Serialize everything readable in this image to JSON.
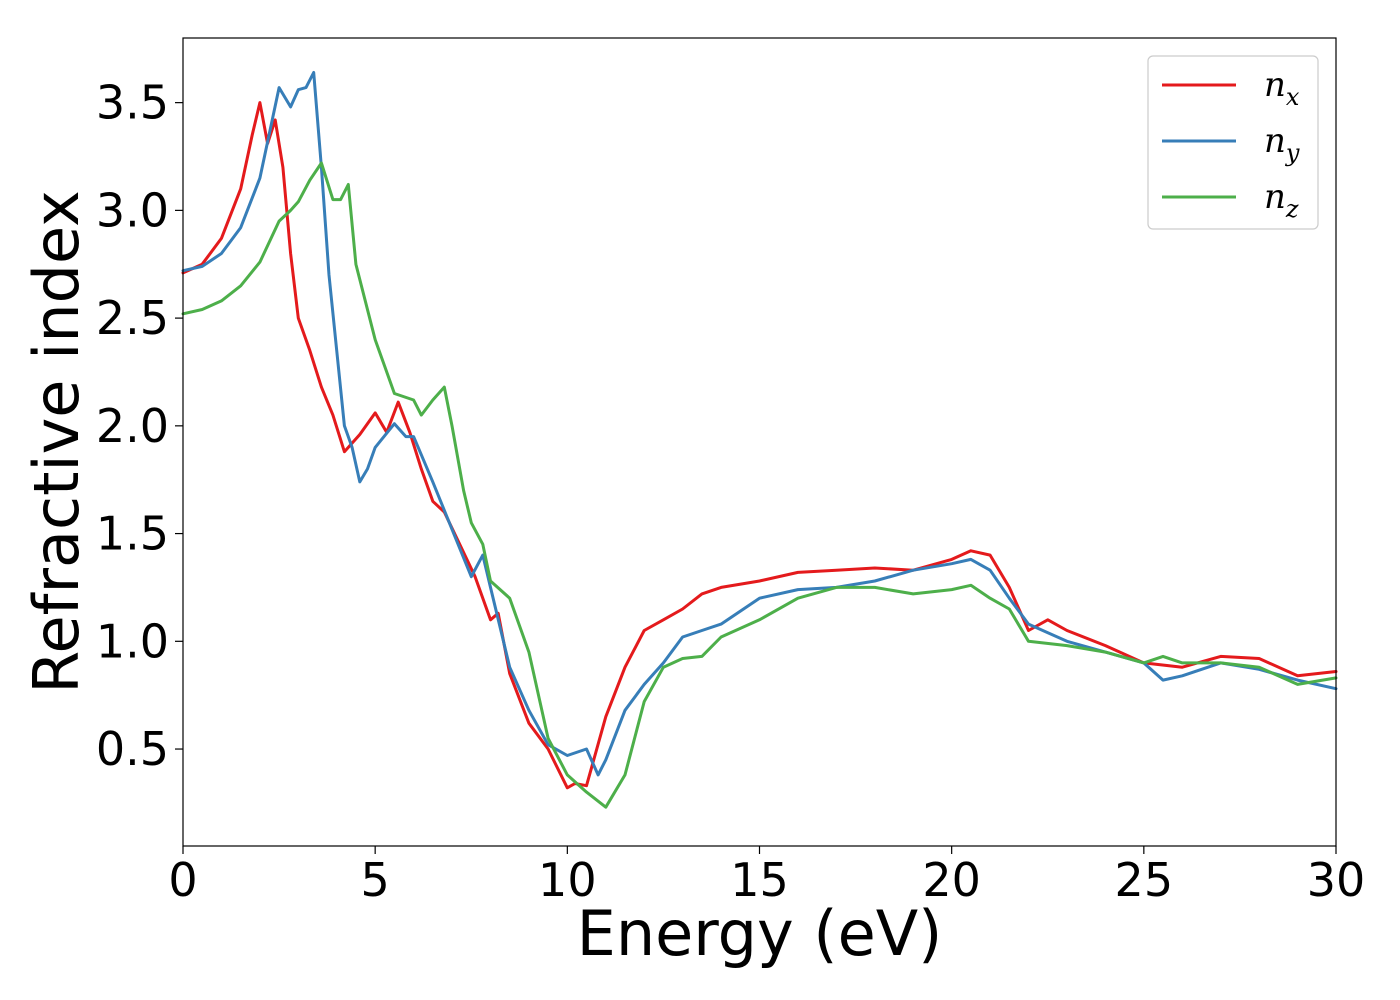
{
  "chart_data": {
    "type": "line",
    "title": "",
    "xlabel": "Energy (eV)",
    "ylabel": "Refractive index",
    "xlim": [
      0,
      30
    ],
    "ylim": [
      0.05,
      3.8
    ],
    "xticks": [
      0,
      5,
      10,
      15,
      20,
      25,
      30
    ],
    "xtick_labels": [
      "0",
      "5",
      "10",
      "15",
      "20",
      "25",
      "30"
    ],
    "yticks": [
      0.5,
      1.0,
      1.5,
      2.0,
      2.5,
      3.0,
      3.5
    ],
    "ytick_labels": [
      "0.5",
      "1.0",
      "1.5",
      "2.0",
      "2.5",
      "3.0",
      "3.5"
    ],
    "grid": false,
    "legend_position": "top-right",
    "series": [
      {
        "name": "n_x",
        "label_main": "n",
        "label_sub": "x",
        "color": "#e41a1c",
        "x": [
          0,
          0.5,
          1.0,
          1.5,
          1.8,
          2.0,
          2.2,
          2.4,
          2.6,
          2.8,
          3.0,
          3.3,
          3.6,
          3.9,
          4.2,
          4.6,
          5.0,
          5.3,
          5.6,
          5.9,
          6.2,
          6.5,
          6.8,
          7.2,
          7.6,
          8.0,
          8.2,
          8.5,
          9.0,
          9.5,
          10.0,
          10.2,
          10.5,
          11.0,
          11.5,
          12.0,
          12.5,
          13.0,
          13.5,
          14.0,
          15.0,
          16.0,
          17.0,
          18.0,
          19.0,
          20.0,
          20.5,
          21.0,
          21.5,
          22.0,
          22.5,
          23.0,
          24.0,
          25.0,
          26.0,
          27.0,
          28.0,
          29.0,
          29.5,
          30.0
        ],
        "y": [
          2.71,
          2.75,
          2.87,
          3.1,
          3.35,
          3.5,
          3.31,
          3.42,
          3.2,
          2.8,
          2.5,
          2.35,
          2.18,
          2.05,
          1.88,
          1.96,
          2.06,
          1.97,
          2.11,
          1.97,
          1.8,
          1.65,
          1.6,
          1.45,
          1.3,
          1.1,
          1.13,
          0.85,
          0.62,
          0.5,
          0.32,
          0.34,
          0.33,
          0.65,
          0.88,
          1.05,
          1.1,
          1.15,
          1.22,
          1.25,
          1.28,
          1.32,
          1.33,
          1.34,
          1.33,
          1.38,
          1.42,
          1.4,
          1.25,
          1.05,
          1.1,
          1.05,
          0.98,
          0.9,
          0.88,
          0.93,
          0.92,
          0.84,
          0.85,
          0.86
        ]
      },
      {
        "name": "n_y",
        "label_main": "n",
        "label_sub": "y",
        "color": "#377eb8",
        "x": [
          0,
          0.5,
          1.0,
          1.5,
          2.0,
          2.5,
          2.8,
          3.0,
          3.2,
          3.4,
          3.6,
          3.8,
          4.0,
          4.2,
          4.4,
          4.6,
          4.8,
          5.0,
          5.5,
          5.8,
          6.0,
          6.5,
          7.0,
          7.5,
          7.8,
          8.0,
          8.5,
          9.0,
          9.5,
          10.0,
          10.5,
          10.8,
          11.0,
          11.5,
          12.0,
          12.5,
          13.0,
          13.5,
          14.0,
          15.0,
          16.0,
          17.0,
          18.0,
          19.0,
          20.0,
          20.5,
          21.0,
          21.5,
          22.0,
          23.0,
          24.0,
          25.0,
          25.5,
          26.0,
          27.0,
          28.0,
          29.0,
          30.0
        ],
        "y": [
          2.72,
          2.74,
          2.8,
          2.92,
          3.15,
          3.57,
          3.48,
          3.56,
          3.57,
          3.64,
          3.2,
          2.7,
          2.35,
          2.0,
          1.9,
          1.74,
          1.8,
          1.9,
          2.01,
          1.95,
          1.95,
          1.74,
          1.52,
          1.3,
          1.4,
          1.25,
          0.88,
          0.68,
          0.52,
          0.47,
          0.5,
          0.38,
          0.45,
          0.68,
          0.8,
          0.9,
          1.02,
          1.05,
          1.08,
          1.2,
          1.24,
          1.25,
          1.28,
          1.33,
          1.36,
          1.38,
          1.33,
          1.2,
          1.08,
          1.0,
          0.95,
          0.9,
          0.82,
          0.84,
          0.9,
          0.87,
          0.82,
          0.78
        ]
      },
      {
        "name": "n_z",
        "label_main": "n",
        "label_sub": "z",
        "color": "#4daf4a",
        "x": [
          0,
          0.5,
          1.0,
          1.5,
          2.0,
          2.5,
          2.8,
          3.0,
          3.3,
          3.6,
          3.9,
          4.1,
          4.3,
          4.5,
          5.0,
          5.5,
          6.0,
          6.2,
          6.5,
          6.8,
          7.0,
          7.3,
          7.5,
          7.8,
          8.0,
          8.5,
          9.0,
          9.5,
          10.0,
          10.5,
          11.0,
          11.5,
          12.0,
          12.5,
          13.0,
          13.5,
          14.0,
          15.0,
          16.0,
          17.0,
          18.0,
          19.0,
          20.0,
          20.5,
          21.0,
          21.5,
          22.0,
          23.0,
          24.0,
          25.0,
          25.5,
          26.0,
          27.0,
          28.0,
          29.0,
          30.0
        ],
        "y": [
          2.52,
          2.54,
          2.58,
          2.65,
          2.76,
          2.95,
          3.0,
          3.04,
          3.14,
          3.22,
          3.05,
          3.05,
          3.12,
          2.75,
          2.4,
          2.15,
          2.12,
          2.05,
          2.12,
          2.18,
          2.0,
          1.7,
          1.55,
          1.45,
          1.28,
          1.2,
          0.95,
          0.55,
          0.38,
          0.3,
          0.23,
          0.38,
          0.72,
          0.88,
          0.92,
          0.93,
          1.02,
          1.1,
          1.2,
          1.25,
          1.25,
          1.22,
          1.24,
          1.26,
          1.2,
          1.15,
          1.0,
          0.98,
          0.95,
          0.9,
          0.93,
          0.9,
          0.9,
          0.88,
          0.8,
          0.83
        ]
      }
    ]
  }
}
